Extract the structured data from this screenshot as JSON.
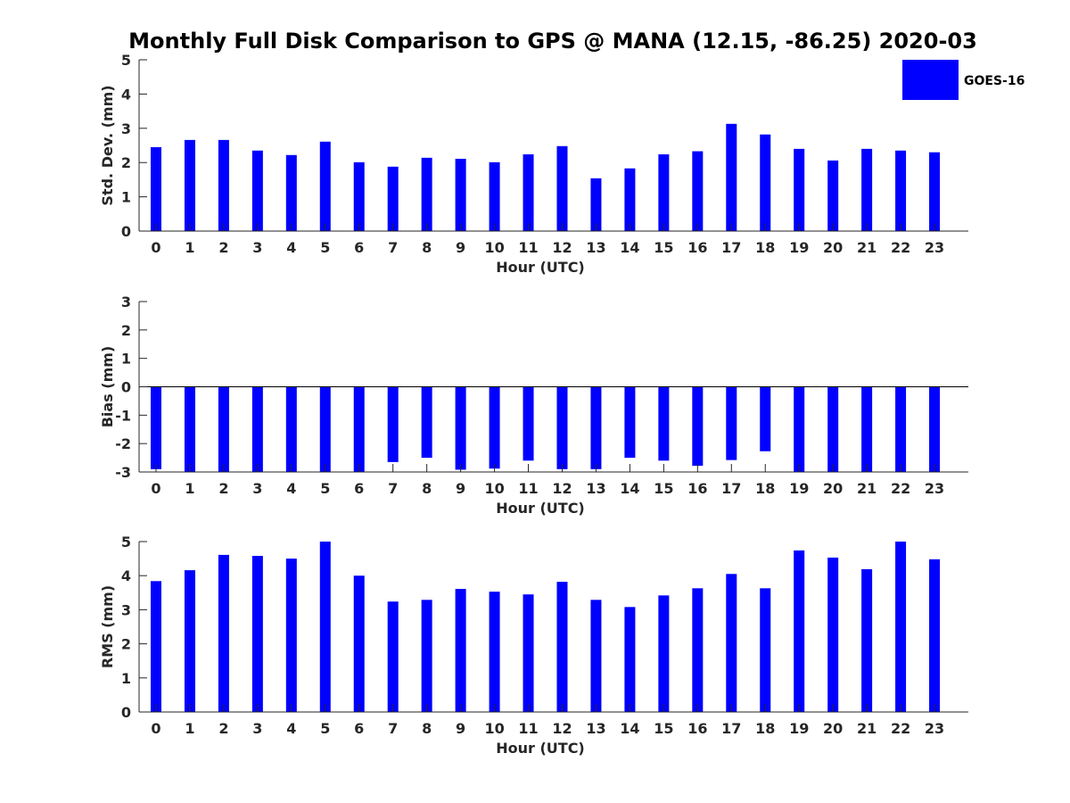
{
  "figure": {
    "title": "Monthly Full Disk Comparison to GPS @ MANA (12.15, -86.25) 2020-03"
  },
  "legend": {
    "label": "GOES-16",
    "color": "#0000ff"
  },
  "chart_data": [
    {
      "type": "bar",
      "xlabel": "Hour (UTC)",
      "ylabel": "Std. Dev. (mm)",
      "categories": [
        "0",
        "1",
        "2",
        "3",
        "4",
        "5",
        "6",
        "7",
        "8",
        "9",
        "10",
        "11",
        "12",
        "13",
        "14",
        "15",
        "16",
        "17",
        "18",
        "19",
        "20",
        "21",
        "22",
        "23"
      ],
      "ylim": [
        0,
        5
      ],
      "yticks": [
        0,
        1,
        2,
        3,
        4,
        5
      ],
      "series": [
        {
          "name": "GOES-16",
          "color": "#0000ff",
          "values": [
            2.45,
            2.66,
            2.66,
            2.35,
            2.22,
            2.61,
            2.01,
            1.88,
            2.14,
            2.11,
            2.01,
            2.24,
            2.48,
            1.54,
            1.83,
            2.24,
            2.33,
            3.13,
            2.82,
            2.4,
            2.06,
            2.4,
            2.35,
            2.3
          ]
        }
      ],
      "grid": false,
      "legend_position": "top-right"
    },
    {
      "type": "bar",
      "xlabel": "Hour (UTC)",
      "ylabel": "Bias (mm)",
      "categories": [
        "0",
        "1",
        "2",
        "3",
        "4",
        "5",
        "6",
        "7",
        "8",
        "9",
        "10",
        "11",
        "12",
        "13",
        "14",
        "15",
        "16",
        "17",
        "18",
        "19",
        "20",
        "21",
        "22",
        "23"
      ],
      "ylim": [
        -3,
        3
      ],
      "yticks": [
        -3,
        -2,
        -1,
        0,
        1,
        2,
        3
      ],
      "series": [
        {
          "name": "GOES-16",
          "color": "#0000ff",
          "values": [
            -2.9,
            -3.0,
            -3.0,
            -3.0,
            -3.0,
            -3.0,
            -3.0,
            -2.65,
            -2.5,
            -2.92,
            -2.88,
            -2.6,
            -2.9,
            -2.9,
            -2.5,
            -2.6,
            -2.78,
            -2.58,
            -2.27,
            -3.0,
            -3.0,
            -3.0,
            -3.0,
            -3.0
          ]
        }
      ],
      "grid": false
    },
    {
      "type": "bar",
      "xlabel": "Hour (UTC)",
      "ylabel": "RMS (mm)",
      "categories": [
        "0",
        "1",
        "2",
        "3",
        "4",
        "5",
        "6",
        "7",
        "8",
        "9",
        "10",
        "11",
        "12",
        "13",
        "14",
        "15",
        "16",
        "17",
        "18",
        "19",
        "20",
        "21",
        "22",
        "23"
      ],
      "ylim": [
        0,
        5
      ],
      "yticks": [
        0,
        1,
        2,
        3,
        4,
        5
      ],
      "series": [
        {
          "name": "GOES-16",
          "color": "#0000ff",
          "values": [
            3.84,
            4.16,
            4.61,
            4.58,
            4.5,
            5.0,
            4.0,
            3.24,
            3.29,
            3.61,
            3.53,
            3.45,
            3.82,
            3.29,
            3.08,
            3.42,
            3.63,
            4.05,
            3.63,
            4.74,
            4.53,
            4.19,
            5.0,
            4.48
          ]
        }
      ],
      "grid": false
    }
  ]
}
